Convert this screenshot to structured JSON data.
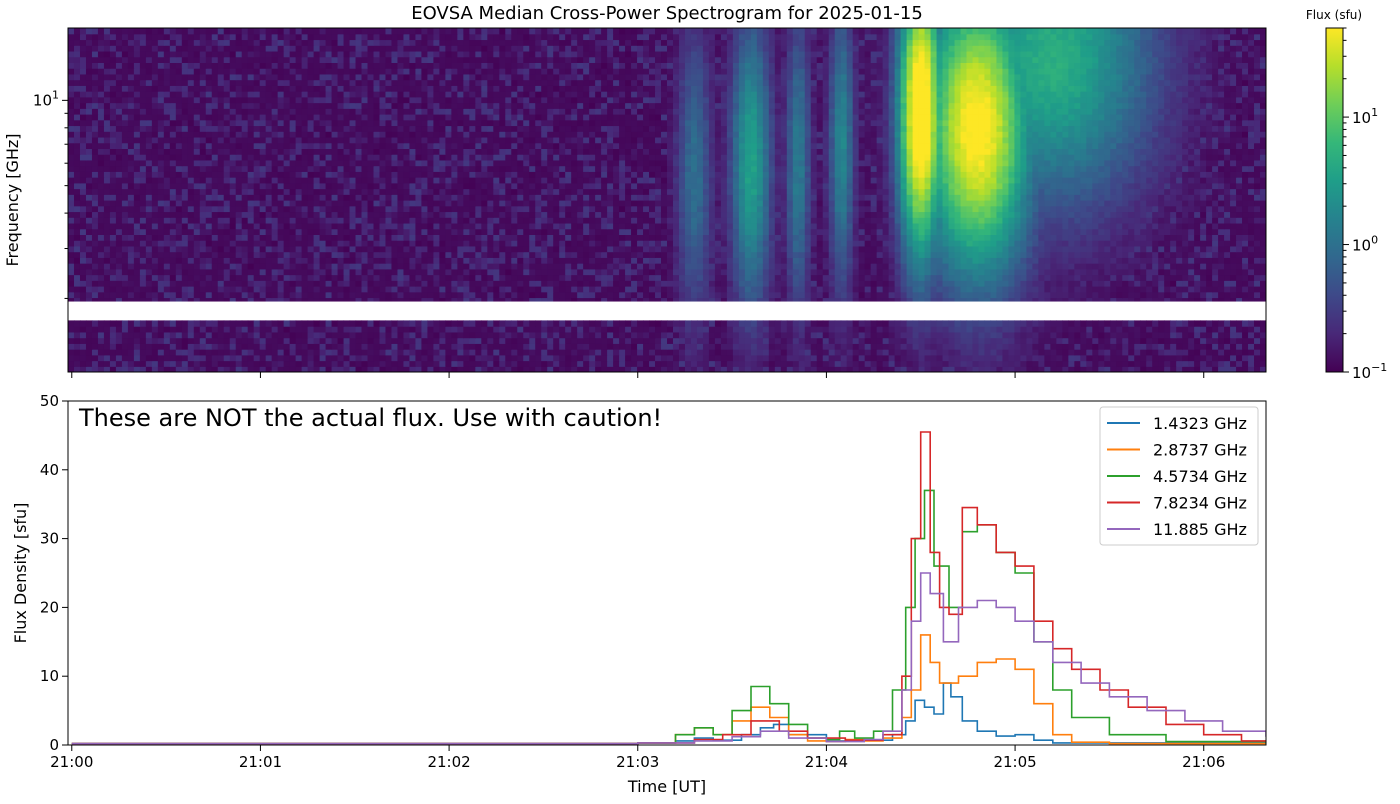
{
  "chart_data": [
    {
      "type": "heatmap",
      "title": "EOVSA Median Cross-Power Spectrogram for 2025-01-15",
      "ylabel": "Frequency [GHz]",
      "yscale": "log",
      "ylim": [
        1.1,
        18.0
      ],
      "yticks": [
        {
          "value": 10,
          "base": "10",
          "exp": "1"
        }
      ],
      "xlim": [
        -0.02,
        6.33
      ],
      "x_tick_minutes": [
        0,
        1,
        2,
        3,
        4,
        5,
        6
      ],
      "gap_ghz": [
        1.7,
        1.95
      ],
      "colorbar": {
        "label": "Flux (sfu)",
        "scale": "log",
        "range": [
          0.1,
          50
        ],
        "ticks": [
          {
            "value": 0.1,
            "base": "10",
            "exp": "−1"
          },
          {
            "value": 1,
            "base": "10",
            "exp": "0"
          },
          {
            "value": 10,
            "base": "10",
            "exp": "1"
          }
        ],
        "colormap": [
          "#440154",
          "#482878",
          "#3e4989",
          "#31688e",
          "#26828e",
          "#1f9e89",
          "#35b779",
          "#6ece58",
          "#b5de2b",
          "#fde725"
        ]
      },
      "bursts": [
        {
          "t": 3.3,
          "w": 0.07,
          "amp": 0.7,
          "fc": 5.5
        },
        {
          "t": 3.6,
          "w": 0.08,
          "amp": 1.1,
          "fc": 6
        },
        {
          "t": 3.85,
          "w": 0.05,
          "amp": 0.8,
          "fc": 6
        },
        {
          "t": 4.08,
          "w": 0.05,
          "amp": 0.9,
          "fc": 7
        },
        {
          "t": 4.5,
          "w": 0.09,
          "amp": 2.2,
          "fc": 9
        },
        {
          "t": 4.8,
          "w": 0.22,
          "amp": 2.0,
          "fc": 8
        },
        {
          "t": 5.2,
          "w": 0.4,
          "amp": 1.2,
          "fc": 14
        }
      ]
    },
    {
      "type": "line",
      "ylabel": "Flux Density [sfu]",
      "xlabel": "Time [UT]",
      "ylim": [
        0,
        50
      ],
      "xlim": [
        -0.02,
        6.33
      ],
      "yticks": [
        0,
        10,
        20,
        30,
        40,
        50
      ],
      "xticks": [
        {
          "minute": 0,
          "label": "21:00"
        },
        {
          "minute": 1,
          "label": "21:01"
        },
        {
          "minute": 2,
          "label": "21:02"
        },
        {
          "minute": 3,
          "label": "21:03"
        },
        {
          "minute": 4,
          "label": "21:04"
        },
        {
          "minute": 5,
          "label": "21:05"
        },
        {
          "minute": 6,
          "label": "21:06"
        }
      ],
      "annotation": "These are NOT the actual flux. Use with caution!",
      "legend_position": "top-right",
      "x_unit": "minutes after 21:00 UT",
      "series": [
        {
          "name": "1.4323 GHz",
          "color": "#1f77b4",
          "x": [
            0,
            3.0,
            3.2,
            3.3,
            3.4,
            3.55,
            3.65,
            3.72,
            3.8,
            4.0,
            4.2,
            4.35,
            4.42,
            4.47,
            4.52,
            4.57,
            4.62,
            4.66,
            4.72,
            4.8,
            4.9,
            5.0,
            5.1,
            5.2,
            6.33
          ],
          "y": [
            0.2,
            0.3,
            0.6,
            1.0,
            0.7,
            1.5,
            2.5,
            3.0,
            1.5,
            0.6,
            0.7,
            1.5,
            3.5,
            6.5,
            5.5,
            4.5,
            9.0,
            7.0,
            3.5,
            2.0,
            1.3,
            1.5,
            0.7,
            0.3,
            0.2
          ]
        },
        {
          "name": "2.8737 GHz",
          "color": "#ff7f0e",
          "x": [
            0,
            3.0,
            3.2,
            3.3,
            3.4,
            3.5,
            3.6,
            3.7,
            3.8,
            3.9,
            4.0,
            4.1,
            4.2,
            4.3,
            4.4,
            4.45,
            4.5,
            4.55,
            4.6,
            4.7,
            4.8,
            4.9,
            5.0,
            5.1,
            5.2,
            5.3,
            5.5,
            6.33
          ],
          "y": [
            0.2,
            0.3,
            1.5,
            2.5,
            1.5,
            3.5,
            5.5,
            4.0,
            1.5,
            0.6,
            0.5,
            0.8,
            0.6,
            1.0,
            4.0,
            8.0,
            16.0,
            12.0,
            9.0,
            10.0,
            12.0,
            12.5,
            11.0,
            6.0,
            1.5,
            0.4,
            0.2,
            0.2
          ]
        },
        {
          "name": "4.5734 GHz",
          "color": "#2ca02c",
          "x": [
            0,
            3.0,
            3.2,
            3.3,
            3.4,
            3.5,
            3.6,
            3.7,
            3.8,
            3.9,
            4.0,
            4.07,
            4.15,
            4.25,
            4.35,
            4.42,
            4.47,
            4.52,
            4.57,
            4.65,
            4.72,
            4.8,
            4.9,
            5.0,
            5.1,
            5.2,
            5.3,
            5.5,
            5.8,
            6.33
          ],
          "y": [
            0.2,
            0.3,
            1.5,
            2.5,
            1.5,
            5.0,
            8.5,
            6.0,
            3.0,
            1.0,
            0.8,
            2.0,
            1.0,
            2.0,
            8.0,
            20.0,
            30.0,
            37.0,
            26.0,
            20.0,
            31.0,
            32.0,
            28.0,
            25.0,
            15.0,
            8.0,
            4.0,
            1.5,
            0.5,
            0.2
          ]
        },
        {
          "name": "7.8234 GHz",
          "color": "#d62728",
          "x": [
            0,
            3.0,
            3.3,
            3.45,
            3.6,
            3.75,
            3.9,
            4.1,
            4.3,
            4.4,
            4.45,
            4.5,
            4.55,
            4.6,
            4.65,
            4.72,
            4.8,
            4.9,
            5.0,
            5.1,
            5.2,
            5.3,
            5.45,
            5.6,
            5.8,
            6.0,
            6.2,
            6.33
          ],
          "y": [
            0.2,
            0.3,
            0.8,
            1.5,
            3.5,
            2.0,
            1.0,
            0.7,
            1.5,
            10.0,
            30.0,
            45.5,
            28.0,
            20.0,
            19.0,
            34.5,
            32.0,
            28.0,
            26.0,
            18.0,
            14.0,
            11.0,
            8.0,
            5.5,
            3.0,
            1.5,
            0.6,
            0.4
          ]
        },
        {
          "name": "11.885 GHz",
          "color": "#9467bd",
          "x": [
            0,
            3.0,
            3.3,
            3.5,
            3.65,
            3.8,
            4.0,
            4.2,
            4.3,
            4.4,
            4.45,
            4.5,
            4.55,
            4.62,
            4.7,
            4.8,
            4.9,
            5.0,
            5.1,
            5.2,
            5.35,
            5.5,
            5.7,
            5.9,
            6.1,
            6.33
          ],
          "y": [
            0.2,
            0.3,
            0.6,
            1.2,
            2.0,
            1.0,
            0.5,
            0.8,
            2.0,
            8.0,
            18.0,
            25.0,
            22.0,
            15.0,
            20.0,
            21.0,
            20.0,
            18.0,
            15.0,
            12.0,
            9.0,
            7.0,
            5.0,
            3.5,
            2.0,
            1.2
          ]
        }
      ]
    }
  ]
}
